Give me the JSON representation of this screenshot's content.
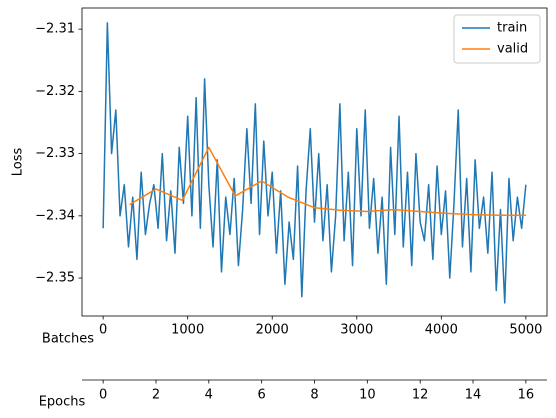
{
  "chart_data": {
    "type": "line",
    "ylabel": "Loss",
    "xlabel": "Batches",
    "x2label": "Epochs",
    "xlim": [
      -250,
      5250
    ],
    "xticks": [
      0,
      1000,
      2000,
      3000,
      4000,
      5000
    ],
    "ylim": [
      -2.3561,
      -2.3066
    ],
    "yticks": [
      {
        "value": -2.35,
        "label": "−2.35"
      },
      {
        "value": -2.34,
        "label": "−2.34"
      },
      {
        "value": -2.33,
        "label": "−2.33"
      },
      {
        "value": -2.32,
        "label": "−2.32"
      },
      {
        "value": -2.31,
        "label": "−2.31"
      }
    ],
    "x2lim": [
      -0.8,
      16.8
    ],
    "x2ticks": [
      0,
      2,
      4,
      6,
      8,
      10,
      12,
      14,
      16
    ],
    "legend": "upper right",
    "series": [
      {
        "name": "train",
        "color": "#1f77b4",
        "x": [
          0,
          50,
          100,
          150,
          200,
          250,
          300,
          350,
          400,
          450,
          500,
          550,
          600,
          650,
          700,
          750,
          800,
          850,
          900,
          950,
          1000,
          1050,
          1100,
          1150,
          1200,
          1250,
          1300,
          1350,
          1400,
          1450,
          1500,
          1550,
          1600,
          1650,
          1700,
          1750,
          1800,
          1850,
          1900,
          1950,
          2000,
          2050,
          2100,
          2150,
          2200,
          2250,
          2300,
          2350,
          2400,
          2450,
          2500,
          2550,
          2600,
          2650,
          2700,
          2750,
          2800,
          2850,
          2900,
          2950,
          3000,
          3050,
          3100,
          3150,
          3200,
          3250,
          3300,
          3350,
          3400,
          3450,
          3500,
          3550,
          3600,
          3650,
          3700,
          3750,
          3800,
          3850,
          3900,
          3950,
          4000,
          4050,
          4100,
          4150,
          4200,
          4250,
          4300,
          4350,
          4400,
          4450,
          4500,
          4550,
          4600,
          4650,
          4700,
          4750,
          4800,
          4850,
          4900,
          4950,
          5000
        ],
        "values": [
          -2.342,
          -2.309,
          -2.33,
          -2.323,
          -2.34,
          -2.335,
          -2.345,
          -2.337,
          -2.347,
          -2.333,
          -2.343,
          -2.338,
          -2.335,
          -2.342,
          -2.33,
          -2.344,
          -2.336,
          -2.346,
          -2.329,
          -2.338,
          -2.324,
          -2.34,
          -2.321,
          -2.342,
          -2.318,
          -2.335,
          -2.345,
          -2.331,
          -2.349,
          -2.337,
          -2.343,
          -2.334,
          -2.348,
          -2.339,
          -2.326,
          -2.338,
          -2.322,
          -2.343,
          -2.328,
          -2.34,
          -2.333,
          -2.346,
          -2.336,
          -2.351,
          -2.341,
          -2.347,
          -2.332,
          -2.353,
          -2.336,
          -2.326,
          -2.341,
          -2.33,
          -2.344,
          -2.335,
          -2.349,
          -2.34,
          -2.322,
          -2.344,
          -2.333,
          -2.348,
          -2.326,
          -2.34,
          -2.323,
          -2.342,
          -2.334,
          -2.346,
          -2.337,
          -2.351,
          -2.329,
          -2.343,
          -2.324,
          -2.345,
          -2.333,
          -2.348,
          -2.33,
          -2.341,
          -2.344,
          -2.335,
          -2.347,
          -2.332,
          -2.343,
          -2.336,
          -2.35,
          -2.338,
          -2.323,
          -2.345,
          -2.334,
          -2.349,
          -2.331,
          -2.342,
          -2.337,
          -2.346,
          -2.333,
          -2.352,
          -2.339,
          -2.354,
          -2.334,
          -2.344,
          -2.337,
          -2.342,
          -2.335
        ]
      },
      {
        "name": "valid",
        "color": "#ff7f0e",
        "x": [
          312.5,
          625,
          937.5,
          1250,
          1562.5,
          1875,
          2187.5,
          2500,
          2812.5,
          3125,
          3437.5,
          3750,
          4062.5,
          4375,
          4687.5,
          5000
        ],
        "values": [
          -2.3382,
          -2.3357,
          -2.3375,
          -2.329,
          -2.3368,
          -2.3344,
          -2.337,
          -2.3387,
          -2.3391,
          -2.3393,
          -2.339,
          -2.3393,
          -2.3396,
          -2.3398,
          -2.3399,
          -2.3399
        ]
      }
    ]
  }
}
